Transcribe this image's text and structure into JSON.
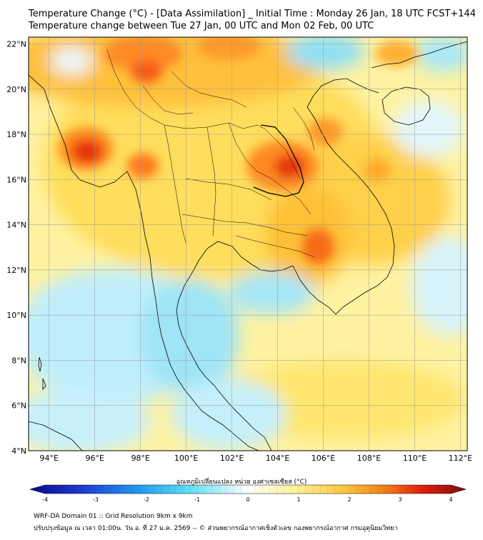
{
  "title": {
    "line1": "Temperature Change (°C) - [Data Assimilation] _ Initial Time : Monday 26 Jan, 18 UTC FCST+144",
    "line2": "Temperature change between Tue 27 Jan, 00 UTC and Mon 02 Feb, 00 UTC"
  },
  "map": {
    "lat_labels": [
      "22°N",
      "20°N",
      "18°N",
      "16°N",
      "14°N",
      "12°N",
      "10°N",
      "8°N",
      "6°N",
      "4°N"
    ],
    "lon_labels": [
      "94°E",
      "96°E",
      "98°E",
      "100°E",
      "102°E",
      "104°E",
      "106°E",
      "108°E",
      "110°E",
      "112°E"
    ],
    "lat_range": [
      4,
      22.3
    ],
    "lon_range": [
      93.1,
      112.3
    ],
    "field_description_colors": {
      "strong_cooling": "#0a0a8c",
      "mild_cooling": "#37c8f0",
      "neutral": "#ffffff",
      "mild_warming": "#fff080",
      "moderate_warming": "#ffb419",
      "strong_warming": "#e60a0a"
    }
  },
  "colorbar": {
    "title": "อุณหภูมิเปลี่ยนแปลง หน่วย องศาเซลเซียส (°C)",
    "ticks": [
      "-4",
      "-3",
      "-2",
      "-1",
      "0",
      "1",
      "2",
      "3",
      "4"
    ]
  },
  "footer": {
    "line1": "WRF-DA Domain 01 :: Grid Resolution 9km x 9km",
    "line2": "ปรับปรุงข้อมูล ณ เวลา 01:00น. วัน อ. ที่ 27 ม.ค. 2569 -- © ส่วนพยากรณ์อากาศเชิงตัวเลข กองพยากรณ์อากาศ กรมอุตุนิยมวิทยา"
  }
}
